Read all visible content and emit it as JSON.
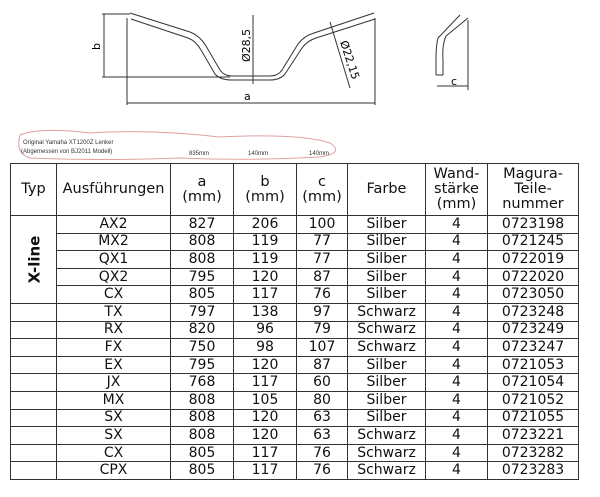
{
  "drawing": {
    "labels": {
      "a": "a",
      "b": "b",
      "c": "c",
      "d1": "Ø28,5",
      "d2": "Ø22,15"
    }
  },
  "note": {
    "line1": "Original Yamaha XT1200Z Lenker",
    "line2": "(Abgemessen von BJ2011 Modell)",
    "a": "835mm",
    "b": "140mm",
    "c": "140mm",
    "outline_color": "#e0a0a0"
  },
  "table": {
    "headers": [
      "Typ",
      "Ausführungen",
      "a (mm)",
      "b (mm)",
      "c (mm)",
      "Farbe",
      "Wand-stärke (mm)",
      "Magura-Teile-nummer"
    ],
    "header_lines": {
      "a": [
        "a",
        "(mm)"
      ],
      "b": [
        "b",
        "(mm)"
      ],
      "c": [
        "c",
        "(mm)"
      ],
      "wand": [
        "Wand-",
        "stärke",
        "(mm)"
      ],
      "magura": [
        "Magura-",
        "Teile-",
        "nummer"
      ]
    },
    "group_label": "X-line",
    "rows": [
      [
        "AX2",
        "827",
        "206",
        "100",
        "Silber",
        "4",
        "0723198"
      ],
      [
        "MX2",
        "808",
        "119",
        "77",
        "Silber",
        "4",
        "0721245"
      ],
      [
        "QX1",
        "808",
        "119",
        "77",
        "Silber",
        "4",
        "0722019"
      ],
      [
        "QX2",
        "795",
        "120",
        "87",
        "Silber",
        "4",
        "0722020"
      ],
      [
        "CX",
        "805",
        "117",
        "76",
        "Silber",
        "4",
        "0723050"
      ],
      [
        "TX",
        "797",
        "138",
        "97",
        "Schwarz",
        "4",
        "0723248"
      ],
      [
        "RX",
        "820",
        "96",
        "79",
        "Schwarz",
        "4",
        "0723249"
      ],
      [
        "FX",
        "750",
        "98",
        "107",
        "Schwarz",
        "4",
        "0723247"
      ],
      [
        "EX",
        "795",
        "120",
        "87",
        "Silber",
        "4",
        "0721053"
      ],
      [
        "JX",
        "768",
        "117",
        "60",
        "Silber",
        "4",
        "0721054"
      ],
      [
        "MX",
        "808",
        "105",
        "80",
        "Silber",
        "4",
        "0721052"
      ],
      [
        "SX",
        "808",
        "120",
        "63",
        "Silber",
        "4",
        "0721055"
      ],
      [
        "SX",
        "808",
        "120",
        "63",
        "Schwarz",
        "4",
        "0723221"
      ],
      [
        "CX",
        "805",
        "117",
        "76",
        "Schwarz",
        "4",
        "0723282"
      ],
      [
        "CPX",
        "805",
        "117",
        "76",
        "Schwarz",
        "4",
        "0723283"
      ]
    ]
  }
}
